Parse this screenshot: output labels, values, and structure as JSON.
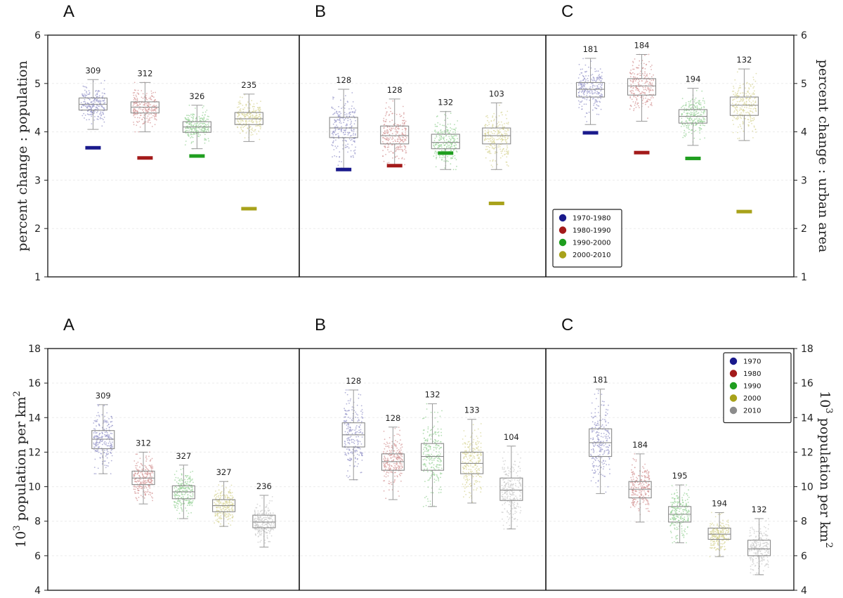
{
  "chart_data": [
    {
      "type": "box",
      "row": "top",
      "ylim": [
        1,
        6
      ],
      "yticks": [
        "1",
        "2",
        "3",
        "4",
        "5",
        "6"
      ],
      "ylabel_left": "percent change : population",
      "ylabel_right": "percent change : urban area",
      "legend": {
        "panel": "C",
        "placement": "bottom-left",
        "entries": [
          {
            "label": "1970-1980",
            "color": "#1a1a8c"
          },
          {
            "label": "1980-1990",
            "color": "#a31a1a"
          },
          {
            "label": "1990-2000",
            "color": "#1f9e1f"
          },
          {
            "label": "2000-2010",
            "color": "#a8a21a"
          }
        ]
      },
      "panels": [
        {
          "letter": "A",
          "boxes": [
            {
              "series": "1970-1980",
              "color": "#1a1a8c",
              "count": "309",
              "whisker_low": 4.05,
              "q1": 4.45,
              "median": 4.57,
              "q3": 4.7,
              "whisker_high": 5.08,
              "marker": 3.67
            },
            {
              "series": "1980-1990",
              "color": "#a31a1a",
              "count": "312",
              "whisker_low": 4.0,
              "q1": 4.39,
              "median": 4.51,
              "q3": 4.62,
              "whisker_high": 5.02,
              "marker": 3.46
            },
            {
              "series": "1990-2000",
              "color": "#1f9e1f",
              "count": "326",
              "whisker_low": 3.65,
              "q1": 3.99,
              "median": 4.1,
              "q3": 4.21,
              "whisker_high": 4.55,
              "marker": 3.5
            },
            {
              "series": "2000-2010",
              "color": "#a8a21a",
              "count": "235",
              "whisker_low": 3.8,
              "q1": 4.15,
              "median": 4.27,
              "q3": 4.4,
              "whisker_high": 4.78,
              "marker": 2.41
            }
          ]
        },
        {
          "letter": "B",
          "boxes": [
            {
              "series": "1970-1980",
              "color": "#1a1a8c",
              "count": "128",
              "whisker_low": 3.25,
              "q1": 3.88,
              "median": 4.08,
              "q3": 4.3,
              "whisker_high": 4.88,
              "marker": 3.22
            },
            {
              "series": "1980-1990",
              "color": "#a31a1a",
              "count": "128",
              "whisker_low": 3.32,
              "q1": 3.75,
              "median": 3.92,
              "q3": 4.12,
              "whisker_high": 4.68,
              "marker": 3.3
            },
            {
              "series": "1990-2000",
              "color": "#1f9e1f",
              "count": "132",
              "whisker_low": 3.22,
              "q1": 3.65,
              "median": 3.78,
              "q3": 3.95,
              "whisker_high": 4.42,
              "marker": 3.56
            },
            {
              "series": "2000-2010",
              "color": "#a8a21a",
              "count": "103",
              "whisker_low": 3.22,
              "q1": 3.75,
              "median": 3.92,
              "q3": 4.08,
              "whisker_high": 4.6,
              "marker": 2.52
            }
          ]
        },
        {
          "letter": "C",
          "boxes": [
            {
              "series": "1970-1980",
              "color": "#1a1a8c",
              "count": "181",
              "whisker_low": 4.15,
              "q1": 4.72,
              "median": 4.88,
              "q3": 5.02,
              "whisker_high": 5.52,
              "marker": 3.98
            },
            {
              "series": "1980-1990",
              "color": "#a31a1a",
              "count": "184",
              "whisker_low": 4.22,
              "q1": 4.76,
              "median": 4.95,
              "q3": 5.1,
              "whisker_high": 5.6,
              "marker": 3.57
            },
            {
              "series": "1990-2000",
              "color": "#1f9e1f",
              "count": "194",
              "whisker_low": 3.72,
              "q1": 4.18,
              "median": 4.32,
              "q3": 4.46,
              "whisker_high": 4.9,
              "marker": 3.45
            },
            {
              "series": "2000-2010",
              "color": "#a8a21a",
              "count": "132",
              "whisker_low": 3.82,
              "q1": 4.34,
              "median": 4.55,
              "q3": 4.72,
              "whisker_high": 5.3,
              "marker": 2.35
            }
          ]
        }
      ]
    },
    {
      "type": "box",
      "row": "bottom",
      "ylim": [
        4,
        18
      ],
      "yticks": [
        "4",
        "6",
        "8",
        "10",
        "12",
        "14",
        "16",
        "18"
      ],
      "ylabel_left": {
        "base": "10",
        "sup": "3",
        "rest": " population per km",
        "sup2": "2"
      },
      "ylabel_right": {
        "base": "10",
        "sup": "3",
        "rest": " population per km",
        "sup2": "2"
      },
      "legend": {
        "panel": "C",
        "placement": "top-right",
        "entries": [
          {
            "label": "1970",
            "color": "#1a1a8c"
          },
          {
            "label": "1980",
            "color": "#a31a1a"
          },
          {
            "label": "1990",
            "color": "#1f9e1f"
          },
          {
            "label": "2000",
            "color": "#a8a21a"
          },
          {
            "label": "2010",
            "color": "#8c8c8c"
          }
        ]
      },
      "panels": [
        {
          "letter": "A",
          "boxes": [
            {
              "series": "1970",
              "color": "#1a1a8c",
              "count": "309",
              "whisker_low": 10.75,
              "q1": 12.2,
              "median": 12.75,
              "q3": 13.25,
              "whisker_high": 14.75
            },
            {
              "series": "1980",
              "color": "#a31a1a",
              "count": "312",
              "whisker_low": 9.0,
              "q1": 10.12,
              "median": 10.5,
              "q3": 10.9,
              "whisker_high": 12.0
            },
            {
              "series": "1990",
              "color": "#1f9e1f",
              "count": "327",
              "whisker_low": 8.15,
              "q1": 9.3,
              "median": 9.7,
              "q3": 10.05,
              "whisker_high": 11.25
            },
            {
              "series": "2000",
              "color": "#a8a21a",
              "count": "327",
              "whisker_low": 7.7,
              "q1": 8.55,
              "median": 8.9,
              "q3": 9.25,
              "whisker_high": 10.3
            },
            {
              "series": "2010",
              "color": "#8c8c8c",
              "count": "236",
              "whisker_low": 6.5,
              "q1": 7.62,
              "median": 7.95,
              "q3": 8.35,
              "whisker_high": 9.5
            }
          ]
        },
        {
          "letter": "B",
          "boxes": [
            {
              "series": "1970",
              "color": "#1a1a8c",
              "count": "128",
              "whisker_low": 10.4,
              "q1": 12.3,
              "median": 13.0,
              "q3": 13.7,
              "whisker_high": 15.6
            },
            {
              "series": "1980",
              "color": "#a31a1a",
              "count": "128",
              "whisker_low": 9.25,
              "q1": 10.95,
              "median": 11.45,
              "q3": 11.9,
              "whisker_high": 13.45
            },
            {
              "series": "1990",
              "color": "#1f9e1f",
              "count": "132",
              "whisker_low": 8.85,
              "q1": 10.95,
              "median": 11.75,
              "q3": 12.5,
              "whisker_high": 14.8
            },
            {
              "series": "2000",
              "color": "#a8a21a",
              "count": "133",
              "whisker_low": 9.05,
              "q1": 10.75,
              "median": 11.35,
              "q3": 12.0,
              "whisker_high": 13.9
            },
            {
              "series": "2010",
              "color": "#8c8c8c",
              "count": "104",
              "whisker_low": 7.55,
              "q1": 9.2,
              "median": 9.8,
              "q3": 10.5,
              "whisker_high": 12.35
            }
          ]
        },
        {
          "letter": "C",
          "boxes": [
            {
              "series": "1970",
              "color": "#1a1a8c",
              "count": "181",
              "whisker_low": 9.6,
              "q1": 11.75,
              "median": 12.55,
              "q3": 13.35,
              "whisker_high": 15.65
            },
            {
              "series": "1980",
              "color": "#a31a1a",
              "count": "184",
              "whisker_low": 7.95,
              "q1": 9.35,
              "median": 9.85,
              "q3": 10.3,
              "whisker_high": 11.9
            },
            {
              "series": "1990",
              "color": "#1f9e1f",
              "count": "195",
              "whisker_low": 6.75,
              "q1": 7.95,
              "median": 8.4,
              "q3": 8.85,
              "whisker_high": 10.1
            },
            {
              "series": "2000",
              "color": "#a8a21a",
              "count": "194",
              "whisker_low": 5.95,
              "q1": 6.95,
              "median": 7.25,
              "q3": 7.6,
              "whisker_high": 8.5
            },
            {
              "series": "2010",
              "color": "#8c8c8c",
              "count": "132",
              "whisker_low": 4.9,
              "q1": 6.0,
              "median": 6.4,
              "q3": 6.9,
              "whisker_high": 8.15
            }
          ]
        }
      ]
    }
  ]
}
